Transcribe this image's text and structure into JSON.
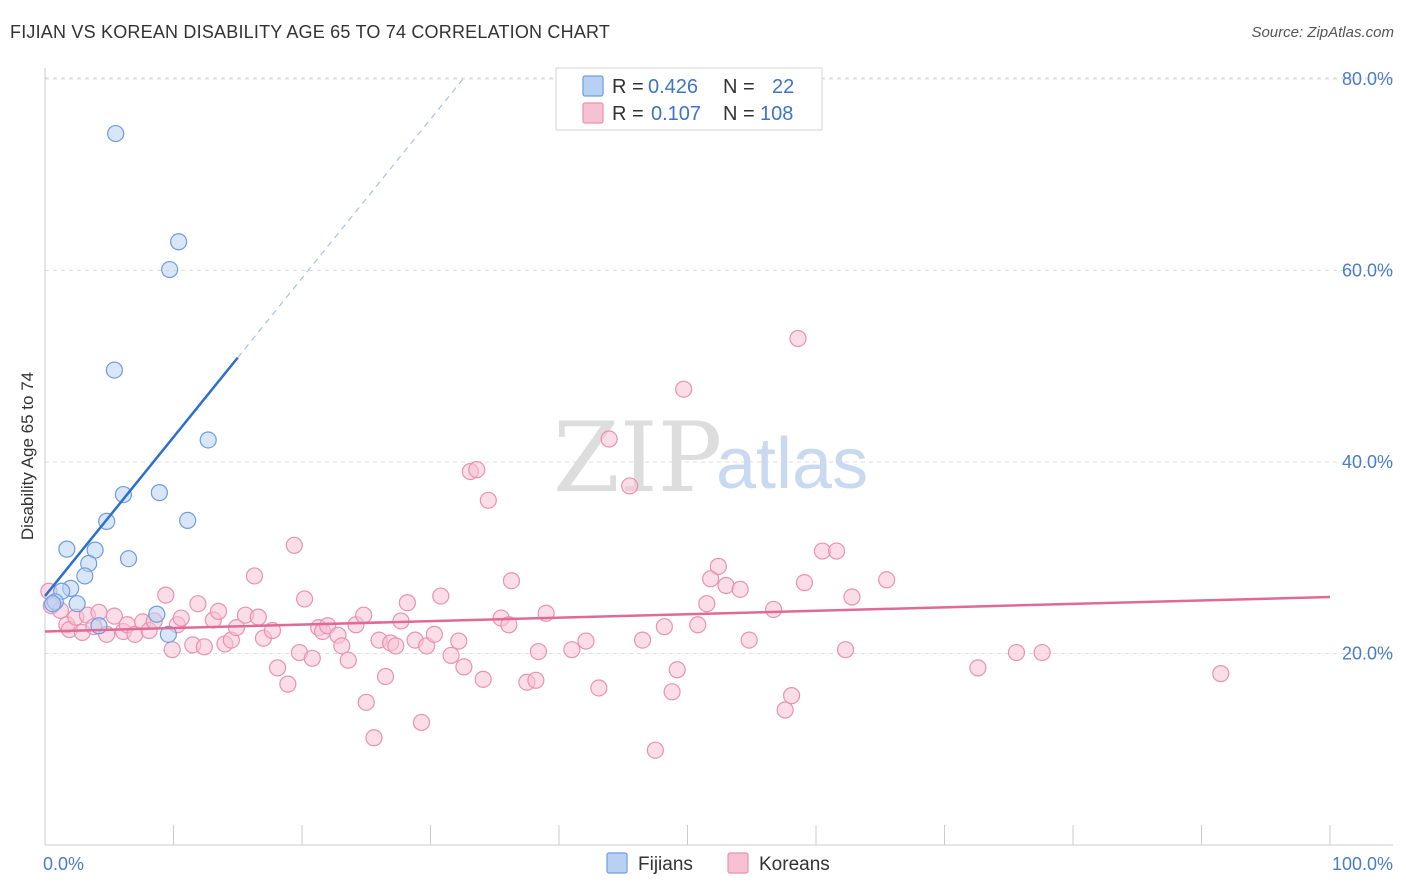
{
  "title": "FIJIAN VS KOREAN DISABILITY AGE 65 TO 74 CORRELATION CHART",
  "source": "Source: ZipAtlas.com",
  "watermark": {
    "part1": "ZIP",
    "part2": "atlas"
  },
  "colors": {
    "fijian_fill": "#b8d1f3",
    "fijian_stroke": "#6d9de0",
    "fijian_line": "#2c6fce",
    "korean_fill": "#f7c1d4",
    "korean_stroke": "#e892b2",
    "korean_line": "#e06a96",
    "grid": "#dddddd",
    "tick_text": "#4a7cc7"
  },
  "legend": {
    "rows": [
      {
        "series": "Fijians",
        "r_label": "R = ",
        "r_value": "0.426",
        "n_label": "N = ",
        "n_value": "22"
      },
      {
        "series": "Koreans",
        "r_label": "R = ",
        "r_value": "0.107",
        "n_label": "N = ",
        "n_value": "108"
      }
    ]
  },
  "chart_data": {
    "type": "scatter",
    "title": "FIJIAN VS KOREAN DISABILITY AGE 65 TO 74 CORRELATION CHART",
    "xlabel": "",
    "ylabel": "Disability Age 65 to 74",
    "xlim": [
      0,
      100
    ],
    "ylim": [
      0,
      83
    ],
    "x_tick_labels": [
      {
        "value": 0,
        "label": "0.0%"
      },
      {
        "value": 100,
        "label": "100.0%"
      }
    ],
    "y_tick_labels": [
      {
        "value": 20,
        "label": "20.0%"
      },
      {
        "value": 40,
        "label": "40.0%"
      },
      {
        "value": 60,
        "label": "60.0%"
      },
      {
        "value": 80,
        "label": "80.0%"
      }
    ],
    "legend_position": "bottom-center",
    "series": [
      {
        "name": "Fijians",
        "points": [
          [
            5.5,
            74.3
          ],
          [
            10.4,
            63.0
          ],
          [
            9.7,
            60.1
          ],
          [
            5.4,
            49.6
          ],
          [
            12.7,
            42.3
          ],
          [
            6.1,
            36.6
          ],
          [
            8.9,
            36.8
          ],
          [
            4.8,
            33.8
          ],
          [
            11.1,
            33.9
          ],
          [
            1.7,
            30.9
          ],
          [
            3.9,
            30.8
          ],
          [
            6.5,
            29.9
          ],
          [
            3.4,
            29.4
          ],
          [
            3.1,
            28.1
          ],
          [
            2.0,
            26.8
          ],
          [
            1.3,
            26.5
          ],
          [
            0.8,
            25.4
          ],
          [
            0.6,
            25.2
          ],
          [
            2.5,
            25.2
          ],
          [
            8.7,
            24.1
          ],
          [
            4.2,
            22.9
          ],
          [
            9.6,
            22.0
          ]
        ],
        "trend": {
          "x0": 0,
          "y0": 26.0,
          "x1": 15,
          "y1": 50.9,
          "dash_to_x": 32.5
        }
      },
      {
        "name": "Koreans",
        "points": [
          [
            0.3,
            26.5
          ],
          [
            0.5,
            25.0
          ],
          [
            1.2,
            24.5
          ],
          [
            1.7,
            23.0
          ],
          [
            1.9,
            22.5
          ],
          [
            2.4,
            23.8
          ],
          [
            2.9,
            22.2
          ],
          [
            3.3,
            24.0
          ],
          [
            3.8,
            22.8
          ],
          [
            4.2,
            24.3
          ],
          [
            4.8,
            22.0
          ],
          [
            5.4,
            23.9
          ],
          [
            6.1,
            22.3
          ],
          [
            6.4,
            23.0
          ],
          [
            7.0,
            22.0
          ],
          [
            7.6,
            23.3
          ],
          [
            8.1,
            22.4
          ],
          [
            8.5,
            23.4
          ],
          [
            9.4,
            26.1
          ],
          [
            9.9,
            20.4
          ],
          [
            10.3,
            23.0
          ],
          [
            10.6,
            23.7
          ],
          [
            11.5,
            20.9
          ],
          [
            11.9,
            25.2
          ],
          [
            12.4,
            20.7
          ],
          [
            13.1,
            23.5
          ],
          [
            13.5,
            24.4
          ],
          [
            14.0,
            21.0
          ],
          [
            14.5,
            21.4
          ],
          [
            14.9,
            22.7
          ],
          [
            15.6,
            24.0
          ],
          [
            16.3,
            28.1
          ],
          [
            16.6,
            23.8
          ],
          [
            17.0,
            21.6
          ],
          [
            17.7,
            22.4
          ],
          [
            18.1,
            18.5
          ],
          [
            18.9,
            16.8
          ],
          [
            19.4,
            31.3
          ],
          [
            19.8,
            20.1
          ],
          [
            20.2,
            25.7
          ],
          [
            20.8,
            19.5
          ],
          [
            21.3,
            22.7
          ],
          [
            21.6,
            22.3
          ],
          [
            22.0,
            22.9
          ],
          [
            22.8,
            21.9
          ],
          [
            23.1,
            20.8
          ],
          [
            23.6,
            19.3
          ],
          [
            24.2,
            23.0
          ],
          [
            24.8,
            24.0
          ],
          [
            25.0,
            14.9
          ],
          [
            25.6,
            11.2
          ],
          [
            26.0,
            21.4
          ],
          [
            26.5,
            17.6
          ],
          [
            26.9,
            21.1
          ],
          [
            27.3,
            20.8
          ],
          [
            27.7,
            23.4
          ],
          [
            28.2,
            25.3
          ],
          [
            28.8,
            21.4
          ],
          [
            29.3,
            12.8
          ],
          [
            29.7,
            20.8
          ],
          [
            30.3,
            22.0
          ],
          [
            30.8,
            26.0
          ],
          [
            31.6,
            19.8
          ],
          [
            32.2,
            21.3
          ],
          [
            32.6,
            18.6
          ],
          [
            33.1,
            39.0
          ],
          [
            33.6,
            39.2
          ],
          [
            34.1,
            17.3
          ],
          [
            34.5,
            36.0
          ],
          [
            35.5,
            23.7
          ],
          [
            36.1,
            23.0
          ],
          [
            36.3,
            27.6
          ],
          [
            37.5,
            17.0
          ],
          [
            38.2,
            17.2
          ],
          [
            38.4,
            20.2
          ],
          [
            39.0,
            24.2
          ],
          [
            41.0,
            20.4
          ],
          [
            42.1,
            21.3
          ],
          [
            43.1,
            16.4
          ],
          [
            43.9,
            42.4
          ],
          [
            45.5,
            37.5
          ],
          [
            46.5,
            21.4
          ],
          [
            47.5,
            9.9
          ],
          [
            48.2,
            22.8
          ],
          [
            48.8,
            16.0
          ],
          [
            49.2,
            18.3
          ],
          [
            49.7,
            47.6
          ],
          [
            50.8,
            23.0
          ],
          [
            51.5,
            25.2
          ],
          [
            51.8,
            27.8
          ],
          [
            52.4,
            29.1
          ],
          [
            53.0,
            27.1
          ],
          [
            54.1,
            26.7
          ],
          [
            54.8,
            21.4
          ],
          [
            56.7,
            24.6
          ],
          [
            57.6,
            14.1
          ],
          [
            58.1,
            15.6
          ],
          [
            58.6,
            52.9
          ],
          [
            59.1,
            27.4
          ],
          [
            60.5,
            30.7
          ],
          [
            61.6,
            30.7
          ],
          [
            62.3,
            20.4
          ],
          [
            62.8,
            25.9
          ],
          [
            65.5,
            27.7
          ],
          [
            72.6,
            18.5
          ],
          [
            75.6,
            20.1
          ],
          [
            77.6,
            20.1
          ],
          [
            91.5,
            17.9
          ]
        ],
        "trend": {
          "x0": 0,
          "y0": 22.3,
          "x1": 100,
          "y1": 25.9
        }
      }
    ]
  }
}
